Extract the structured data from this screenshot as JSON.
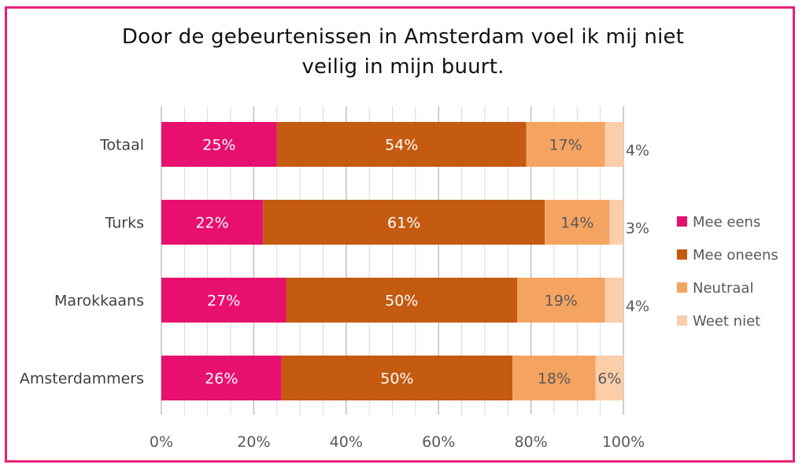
{
  "chart_data": {
    "type": "bar",
    "orientation": "horizontal",
    "stacked": true,
    "title": "Door de gebeurtenissen in Amsterdam voel ik mij niet veilig in mijn buurt.",
    "title_lines": [
      "Door de gebeurtenissen in Amsterdam voel ik mij niet",
      "veilig in mijn buurt."
    ],
    "categories": [
      "Totaal",
      "Turks",
      "Marokkaans",
      "Amsterdammers"
    ],
    "series": [
      {
        "name": "Mee eens",
        "color": "#e8106e",
        "label_color": "#ffffff",
        "values": [
          25,
          22,
          27,
          26
        ],
        "labels": [
          "25%",
          "22%",
          "27%",
          "26%"
        ]
      },
      {
        "name": "Mee oneens",
        "color": "#c55a11",
        "label_color": "#ffffff",
        "values": [
          54,
          61,
          50,
          50
        ],
        "labels": [
          "54%",
          "61%",
          "50%",
          "50%"
        ]
      },
      {
        "name": "Neutraal",
        "color": "#f4a460",
        "label_color": "#595959",
        "values": [
          17,
          14,
          19,
          18
        ],
        "labels": [
          "17%",
          "14%",
          "19%",
          "18%"
        ]
      },
      {
        "name": "Weet niet",
        "color": "#fbcda8",
        "label_color": "#595959",
        "values": [
          4,
          3,
          4,
          6
        ],
        "labels": [
          "4%",
          "3%",
          "4%",
          "6%"
        ]
      }
    ],
    "xlim": [
      0,
      100
    ],
    "x_ticks": [
      "0%",
      "20%",
      "40%",
      "60%",
      "80%",
      "100%"
    ],
    "grid": true,
    "legend_position": "right",
    "frame_color": "#e8207a"
  }
}
